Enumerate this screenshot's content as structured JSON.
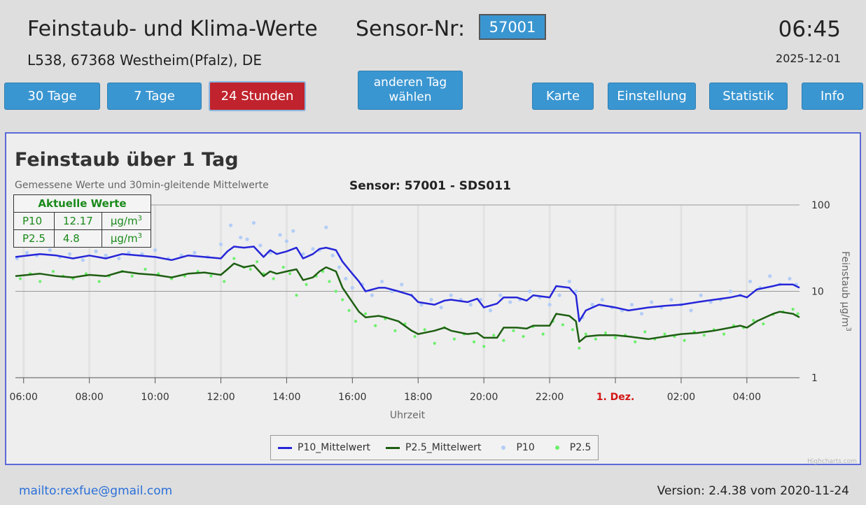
{
  "header": {
    "title": "Feinstaub- und Klima-Werte",
    "sensor_label": "Sensor-Nr:",
    "sensor_value": "57001",
    "time": "06:45",
    "address": "L538, 67368 Westheim(Pfalz), DE",
    "date": "2025-12-01"
  },
  "buttons": {
    "days30": "30 Tage",
    "days7": "7 Tage",
    "hours24": "24 Stunden",
    "other_day_line1": "anderen Tag",
    "other_day_line2": "wählen",
    "map": "Karte",
    "settings": "Einstellung",
    "statistics": "Statistik",
    "info": "Info"
  },
  "colors": {
    "button": "#3a96d1",
    "button_active": "#c0232d",
    "p10_mean": "#2626d9",
    "p25_mean": "#1e5e12",
    "p10_points": "#b3cdf7",
    "p25_points": "#6cf06c",
    "day_label": "#d21515"
  },
  "current": {
    "heading": "Aktuelle Werte",
    "rows": [
      {
        "name": "P10",
        "value": "12.17",
        "unit": "µg/m",
        "sup": "3"
      },
      {
        "name": "P2.5",
        "value": "4.8",
        "unit": "µg/m",
        "sup": "3"
      }
    ]
  },
  "chart_data": {
    "type": "line",
    "title": "Feinstaub über 1 Tag",
    "subtitle": "Gemessene Werte und 30min-gleitende Mittelwerte",
    "sensor_caption": "Sensor: 57001 - SDS011",
    "xlabel": "Uhrzeit",
    "ylabel": "Feinstaub µg/m",
    "ylabel_sup": "3",
    "y_scale": "log",
    "ylim": [
      1,
      100
    ],
    "y_ticks": [
      "1",
      "10",
      "100"
    ],
    "x_range_hours": [
      5.75,
      29.6
    ],
    "x_tick_labels": [
      "06:00",
      "08:00",
      "10:00",
      "12:00",
      "14:00",
      "16:00",
      "18:00",
      "20:00",
      "22:00",
      "1. Dez.",
      "02:00",
      "04:00"
    ],
    "x_tick_hours": [
      6,
      8,
      10,
      12,
      14,
      16,
      18,
      20,
      22,
      24,
      26,
      28
    ],
    "grid": true,
    "legend_position": "bottom-center",
    "credits": "Highcharts.com",
    "series": [
      {
        "name": "P10_Mittelwert",
        "kind": "line",
        "x": [
          5.75,
          6.5,
          7.0,
          7.5,
          8.0,
          8.5,
          9.0,
          9.5,
          10.0,
          10.5,
          11.0,
          11.5,
          12.0,
          12.2,
          12.4,
          12.7,
          13.0,
          13.3,
          13.5,
          13.7,
          14.0,
          14.3,
          14.5,
          14.8,
          15.0,
          15.2,
          15.5,
          15.7,
          16.0,
          16.2,
          16.4,
          16.8,
          17.0,
          17.4,
          17.8,
          18.0,
          18.5,
          18.8,
          19.0,
          19.5,
          19.8,
          20.0,
          20.4,
          20.6,
          21.0,
          21.3,
          21.5,
          22.0,
          22.2,
          22.6,
          22.8,
          22.9,
          23.1,
          23.5,
          24.0,
          24.4,
          25.0,
          25.5,
          26.0,
          26.5,
          27.0,
          27.5,
          27.8,
          28.0,
          28.3,
          28.8,
          29.0,
          29.4,
          29.6
        ],
        "values": [
          25.0,
          27.0,
          26.0,
          24.0,
          26.0,
          24.0,
          27.0,
          26.0,
          25.0,
          23.0,
          26.0,
          25.0,
          24.0,
          29.0,
          33.0,
          32.0,
          33.0,
          25.0,
          30.0,
          27.0,
          29.0,
          32.0,
          24.0,
          27.0,
          31.0,
          32.0,
          30.0,
          22.0,
          16.0,
          13.0,
          10.0,
          11.0,
          11.0,
          10.0,
          9.0,
          7.5,
          7.0,
          7.8,
          8.0,
          7.5,
          8.2,
          6.5,
          7.2,
          8.5,
          8.5,
          7.8,
          9.0,
          8.5,
          11.5,
          11.0,
          9.0,
          4.5,
          6.0,
          7.0,
          6.5,
          6.0,
          6.5,
          6.8,
          7.0,
          7.5,
          8.0,
          8.5,
          9.0,
          8.5,
          10.5,
          11.5,
          12.0,
          12.0,
          11.0
        ]
      },
      {
        "name": "P2.5_Mittelwert",
        "kind": "line",
        "x": [
          5.75,
          6.5,
          7.0,
          7.5,
          8.0,
          8.5,
          9.0,
          9.5,
          10.0,
          10.5,
          11.0,
          11.5,
          12.0,
          12.2,
          12.4,
          12.7,
          13.0,
          13.3,
          13.5,
          13.7,
          14.0,
          14.3,
          14.5,
          14.8,
          15.0,
          15.2,
          15.5,
          15.7,
          16.0,
          16.2,
          16.4,
          16.8,
          17.0,
          17.4,
          17.8,
          18.0,
          18.5,
          18.8,
          19.0,
          19.5,
          19.8,
          20.0,
          20.4,
          20.6,
          21.0,
          21.3,
          21.5,
          22.0,
          22.2,
          22.6,
          22.8,
          22.9,
          23.1,
          23.5,
          24.0,
          24.4,
          25.0,
          25.5,
          26.0,
          26.5,
          27.0,
          27.5,
          27.8,
          28.0,
          28.3,
          28.8,
          29.0,
          29.4,
          29.6
        ],
        "values": [
          15.0,
          16.0,
          15.0,
          14.5,
          15.5,
          15.0,
          17.0,
          16.0,
          15.5,
          14.5,
          16.0,
          16.5,
          15.5,
          18.0,
          21.0,
          19.0,
          20.0,
          15.0,
          17.0,
          16.0,
          17.0,
          18.0,
          13.5,
          14.5,
          17.0,
          19.0,
          17.0,
          11.0,
          7.5,
          5.8,
          5.0,
          5.2,
          5.0,
          4.5,
          3.5,
          3.2,
          3.5,
          3.8,
          3.5,
          3.2,
          3.3,
          2.9,
          2.9,
          3.8,
          3.8,
          3.7,
          4.0,
          4.0,
          5.5,
          5.2,
          4.5,
          2.6,
          3.0,
          3.1,
          3.1,
          3.0,
          2.8,
          3.0,
          3.2,
          3.3,
          3.5,
          3.8,
          4.0,
          3.8,
          4.5,
          5.5,
          5.8,
          5.5,
          5.0
        ]
      },
      {
        "name": "P10",
        "kind": "scatter",
        "x": [
          5.8,
          6.1,
          6.4,
          6.8,
          7.1,
          7.4,
          7.8,
          8.2,
          8.5,
          8.9,
          9.2,
          9.6,
          10.0,
          10.4,
          10.8,
          11.2,
          11.6,
          12.0,
          12.3,
          12.6,
          12.8,
          13.0,
          13.2,
          13.5,
          13.8,
          14.0,
          14.2,
          14.5,
          14.8,
          15.0,
          15.2,
          15.4,
          15.6,
          15.8,
          16.0,
          16.3,
          16.6,
          16.9,
          17.2,
          17.5,
          17.8,
          18.1,
          18.4,
          18.7,
          19.0,
          19.3,
          19.6,
          19.9,
          20.2,
          20.5,
          20.8,
          21.1,
          21.4,
          21.7,
          22.0,
          22.3,
          22.6,
          22.8,
          23.0,
          23.3,
          23.6,
          23.9,
          24.2,
          24.5,
          24.8,
          25.1,
          25.4,
          25.7,
          26.0,
          26.3,
          26.6,
          26.9,
          27.2,
          27.5,
          27.8,
          28.1,
          28.4,
          28.7,
          29.0,
          29.3,
          29.5
        ],
        "values": [
          24,
          28,
          26,
          30,
          25,
          27,
          23,
          29,
          26,
          24,
          28,
          27,
          30,
          24,
          26,
          28,
          25,
          35,
          58,
          42,
          40,
          62,
          34,
          28,
          45,
          38,
          50,
          27,
          31,
          30,
          55,
          26,
          19,
          14,
          11,
          12,
          9,
          13,
          10,
          12,
          9,
          7,
          8,
          6.5,
          9,
          8,
          7,
          8,
          6,
          9,
          7.5,
          8,
          10,
          8.5,
          7,
          9,
          13,
          10,
          5,
          7,
          8,
          6.5,
          6,
          7,
          5.5,
          7.5,
          6.5,
          8,
          7,
          6,
          9,
          7.5,
          8,
          10,
          9,
          13,
          11,
          15,
          12,
          14,
          12
        ]
      },
      {
        "name": "P2.5",
        "kind": "scatter",
        "x": [
          5.9,
          6.2,
          6.5,
          6.9,
          7.2,
          7.5,
          7.9,
          8.3,
          8.6,
          9.0,
          9.3,
          9.7,
          10.1,
          10.5,
          10.9,
          11.3,
          11.7,
          12.1,
          12.4,
          12.7,
          12.9,
          13.1,
          13.3,
          13.6,
          13.9,
          14.1,
          14.3,
          14.6,
          14.9,
          15.1,
          15.3,
          15.5,
          15.7,
          15.9,
          16.1,
          16.4,
          16.7,
          17.0,
          17.3,
          17.6,
          17.9,
          18.2,
          18.5,
          18.8,
          19.1,
          19.4,
          19.7,
          20.0,
          20.3,
          20.6,
          20.9,
          21.2,
          21.5,
          21.8,
          22.1,
          22.4,
          22.7,
          22.9,
          23.1,
          23.4,
          23.7,
          24.0,
          24.3,
          24.6,
          24.9,
          25.2,
          25.5,
          25.8,
          26.1,
          26.4,
          26.7,
          27.0,
          27.3,
          27.6,
          27.9,
          28.2,
          28.5,
          28.8,
          29.1,
          29.4,
          29.55
        ],
        "values": [
          14,
          16,
          13,
          17,
          15,
          14,
          16,
          13,
          15,
          17,
          15,
          18,
          16,
          14,
          15,
          17,
          15,
          13,
          24,
          19,
          18,
          22,
          16,
          14,
          19,
          16,
          9,
          12,
          15,
          17,
          13,
          10,
          8,
          6,
          4.5,
          5.5,
          4,
          4.8,
          3.5,
          4.2,
          3,
          3.6,
          2.5,
          3.8,
          2.8,
          3.2,
          2.6,
          2.3,
          3.1,
          2.7,
          3.5,
          3,
          3.9,
          3.2,
          4.5,
          4.1,
          3.6,
          2.2,
          3.2,
          2.8,
          3.3,
          2.9,
          3.1,
          2.6,
          3.4,
          2.8,
          3.2,
          3,
          2.7,
          3.4,
          3.1,
          3.6,
          3.2,
          4,
          3.8,
          4.6,
          4.2,
          5.4,
          5.8,
          6.2,
          5.5
        ]
      }
    ]
  },
  "footer": {
    "mailto": "mailto:rexfue@gmail.com",
    "version": "Version: 2.4.38 vom 2020-11-24"
  }
}
